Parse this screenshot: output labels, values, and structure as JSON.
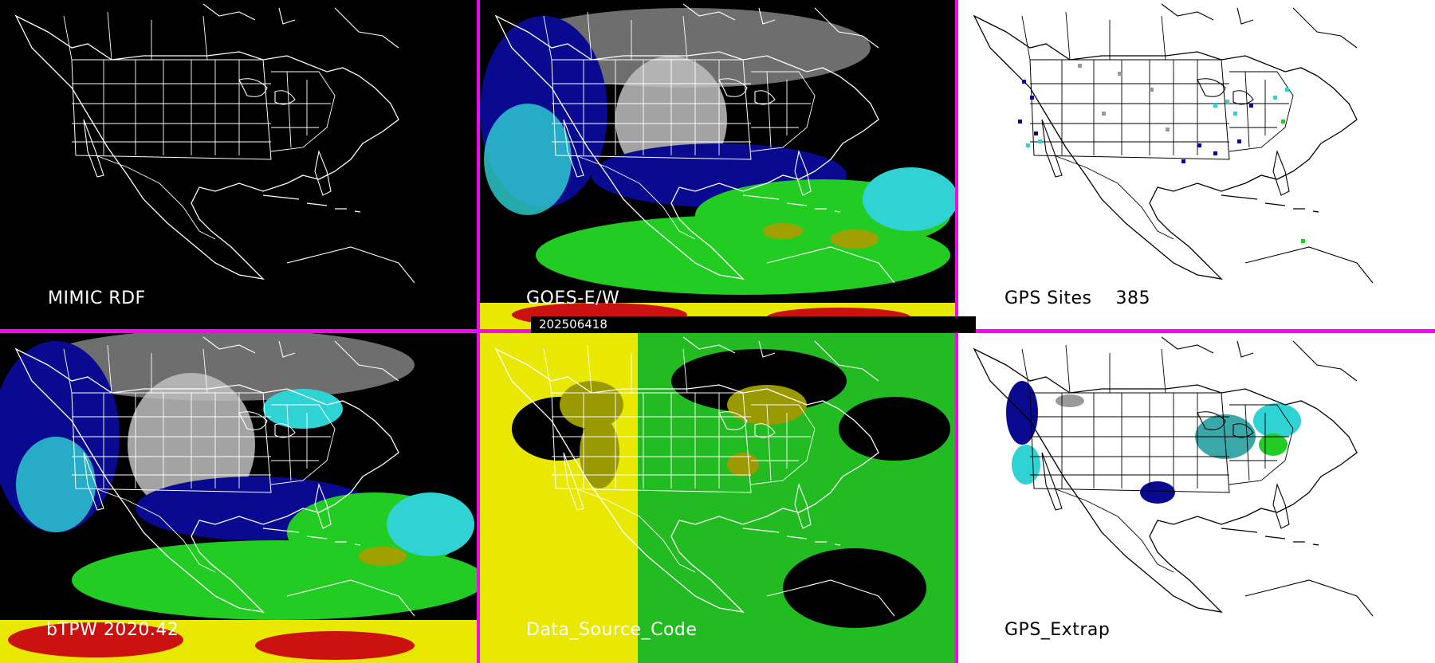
{
  "panels": {
    "top_left": {
      "label": "MIMIC RDF"
    },
    "top_mid": {
      "label": "GOES-E/W"
    },
    "top_right": {
      "label": "GPS Sites    385"
    },
    "bottom_left": {
      "label": "bTPW 2020.42"
    },
    "bottom_mid": {
      "label": "Data_Source_Code"
    },
    "bottom_right": {
      "label": "GPS_Extrap"
    }
  },
  "timestamp": "202506418",
  "colors": {
    "divider": "#ff00ff",
    "background": "#000000",
    "moisture_low": "#0a0a90",
    "moisture_mid": "#2fd3d3",
    "moisture_high": "#22cc22",
    "moisture_very_high": "#a0a000",
    "moisture_max": "#cc1111",
    "source_yellow": "#e8e800",
    "source_green": "#22bb22",
    "source_olive": "#9a9a00"
  }
}
